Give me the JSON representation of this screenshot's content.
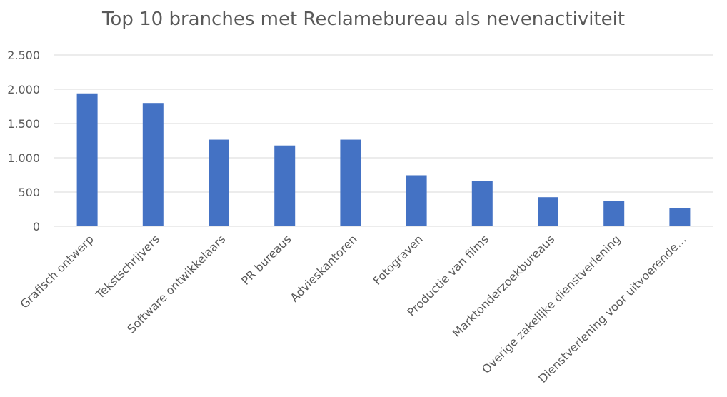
{
  "chart_data": {
    "type": "bar",
    "title": "Top 10 branches met Reclamebureau als nevenactiviteit",
    "xlabel": "",
    "ylabel": "",
    "categories": [
      "Grafisch ontwerp",
      "Tekstschrijvers",
      "Software ontwikkelaars",
      "PR bureaus",
      "Advieskantoren",
      "Fotograven",
      "Productie van films",
      "Marktonderzoekbureaus",
      "Overige zakelijke dienstverlening",
      "Dienstverlening voor uitvoerende…"
    ],
    "values": [
      1940,
      1800,
      1265,
      1180,
      1265,
      745,
      665,
      425,
      365,
      270
    ],
    "ylim": [
      0,
      2500
    ],
    "yticks": [
      0,
      500,
      1000,
      1500,
      2000,
      2500
    ],
    "ytick_labels": [
      "0",
      "500",
      "1.000",
      "1.500",
      "2.000",
      "2.500"
    ],
    "grid": true,
    "legend": "none",
    "bar_color": "#4472C4",
    "grid_color": "#D9D9D9"
  }
}
